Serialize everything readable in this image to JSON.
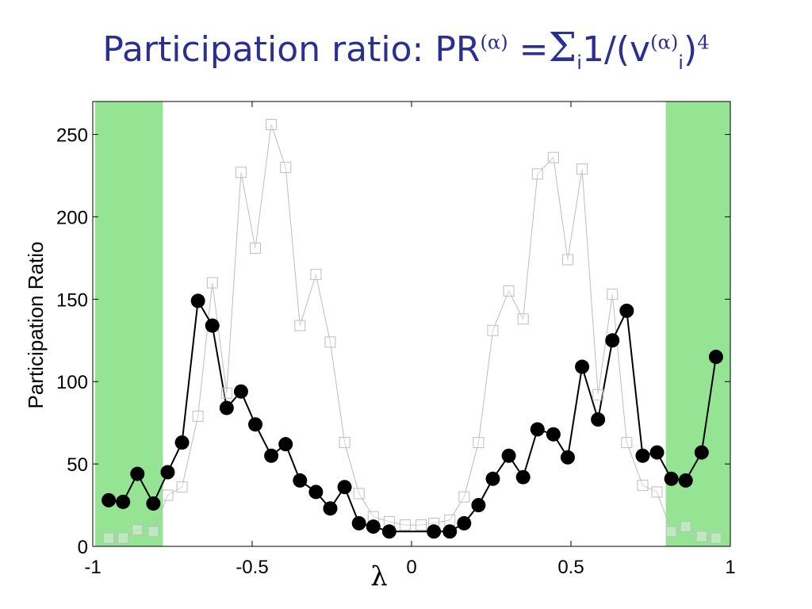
{
  "title": {
    "prefix": "Participation ratio: PR",
    "sup_alpha": "(α)",
    "equals": " =",
    "sigma": "Σ",
    "sub_i": "i",
    "body": "1/(v",
    "sup_alpha2": "(α)",
    "sub_i2": "i",
    "close": ")",
    "exponent": "4"
  },
  "colors": {
    "band": "#94e494",
    "primary": "#000000",
    "secondary": "#bdbdbd",
    "title": "#2b2f91"
  },
  "chart_data": {
    "type": "line",
    "xlabel": "λ",
    "ylabel": "Participation Ratio",
    "xlim": [
      -1,
      1
    ],
    "ylim": [
      0,
      270
    ],
    "xticks": [
      -1,
      -0.5,
      0,
      0.5,
      1
    ],
    "xtick_labels": [
      "-1",
      "-0.5",
      "0",
      "0.5",
      "1"
    ],
    "yticks": [
      0,
      50,
      100,
      150,
      200,
      250
    ],
    "ytick_labels": [
      "0",
      "50",
      "100",
      "150",
      "200",
      "250"
    ],
    "shaded_regions": [
      [
        -1,
        -0.78
      ],
      [
        0.79,
        1
      ]
    ],
    "series": [
      {
        "marker": "filled-circle",
        "color": "#000000",
        "x": [
          -0.95,
          -0.905,
          -0.86,
          -0.81,
          -0.765,
          -0.72,
          -0.67,
          -0.625,
          -0.58,
          -0.535,
          -0.49,
          -0.44,
          -0.395,
          -0.35,
          -0.3,
          -0.255,
          -0.21,
          -0.165,
          -0.12,
          -0.07,
          0.07,
          0.12,
          0.165,
          0.21,
          0.255,
          0.305,
          0.35,
          0.395,
          0.445,
          0.49,
          0.535,
          0.585,
          0.63,
          0.675,
          0.725,
          0.77,
          0.815,
          0.86,
          0.91,
          0.955
        ],
        "y": [
          28,
          27,
          44,
          26,
          45,
          63,
          149,
          134,
          84,
          94,
          74,
          55,
          62,
          40,
          33,
          23,
          36,
          14,
          12,
          9,
          9,
          9,
          14,
          25,
          41,
          55,
          42,
          71,
          68,
          54,
          109,
          77,
          125,
          143,
          55,
          57,
          41,
          40,
          57,
          115
        ]
      },
      {
        "marker": "open-square",
        "color": "#bdbdbd",
        "x": [
          -0.95,
          -0.905,
          -0.86,
          -0.81,
          -0.765,
          -0.72,
          -0.67,
          -0.625,
          -0.58,
          -0.535,
          -0.49,
          -0.44,
          -0.395,
          -0.35,
          -0.3,
          -0.255,
          -0.21,
          -0.165,
          -0.12,
          -0.07,
          -0.02,
          0.03,
          0.07,
          0.12,
          0.165,
          0.21,
          0.255,
          0.305,
          0.35,
          0.395,
          0.445,
          0.49,
          0.535,
          0.585,
          0.63,
          0.675,
          0.725,
          0.77,
          0.815,
          0.86,
          0.91,
          0.955
        ],
        "y": [
          5,
          5,
          10,
          9,
          31,
          36,
          79,
          160,
          93,
          227,
          181,
          256,
          230,
          134,
          165,
          124,
          63,
          32,
          18,
          15,
          13,
          13,
          14,
          16,
          30,
          63,
          131,
          155,
          138,
          226,
          236,
          174,
          229,
          92,
          153,
          63,
          37,
          33,
          9,
          12,
          6,
          5
        ]
      }
    ]
  }
}
